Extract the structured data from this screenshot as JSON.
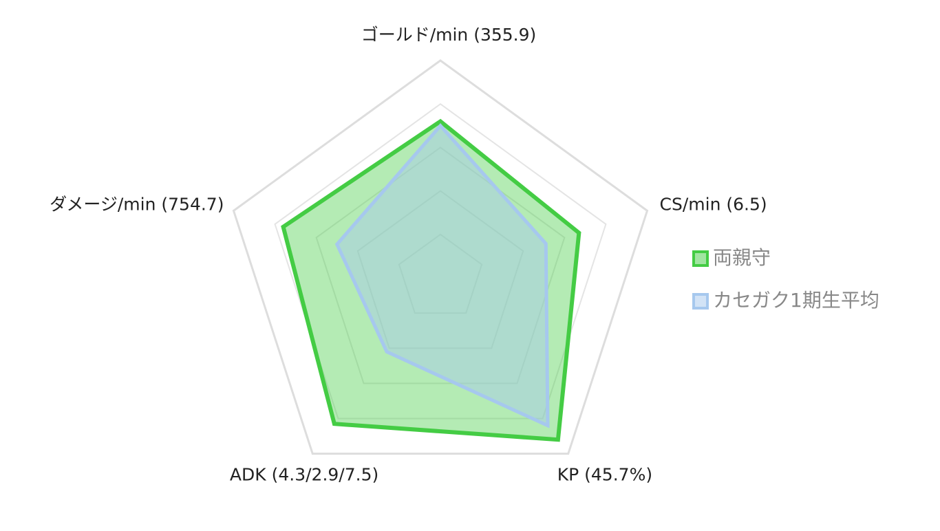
{
  "chart_data": {
    "type": "radar",
    "categories": [
      "ゴールド/min (355.9)",
      "CS/min (6.5)",
      "KP (45.7%)",
      "ADK (4.3/2.9/7.5)",
      "ダメージ/min (754.7)"
    ],
    "series": [
      {
        "name": "両親守",
        "color": "#44cc44",
        "values": [
          72,
          67,
          92,
          83,
          76
        ]
      },
      {
        "name": "カセガク1期生平均",
        "color": "#a6c8ee",
        "values": [
          70,
          51,
          84,
          42,
          50
        ]
      }
    ],
    "rlim": [
      0,
      100
    ],
    "rticks": [
      20,
      40,
      60,
      80,
      100
    ],
    "grid": true
  }
}
